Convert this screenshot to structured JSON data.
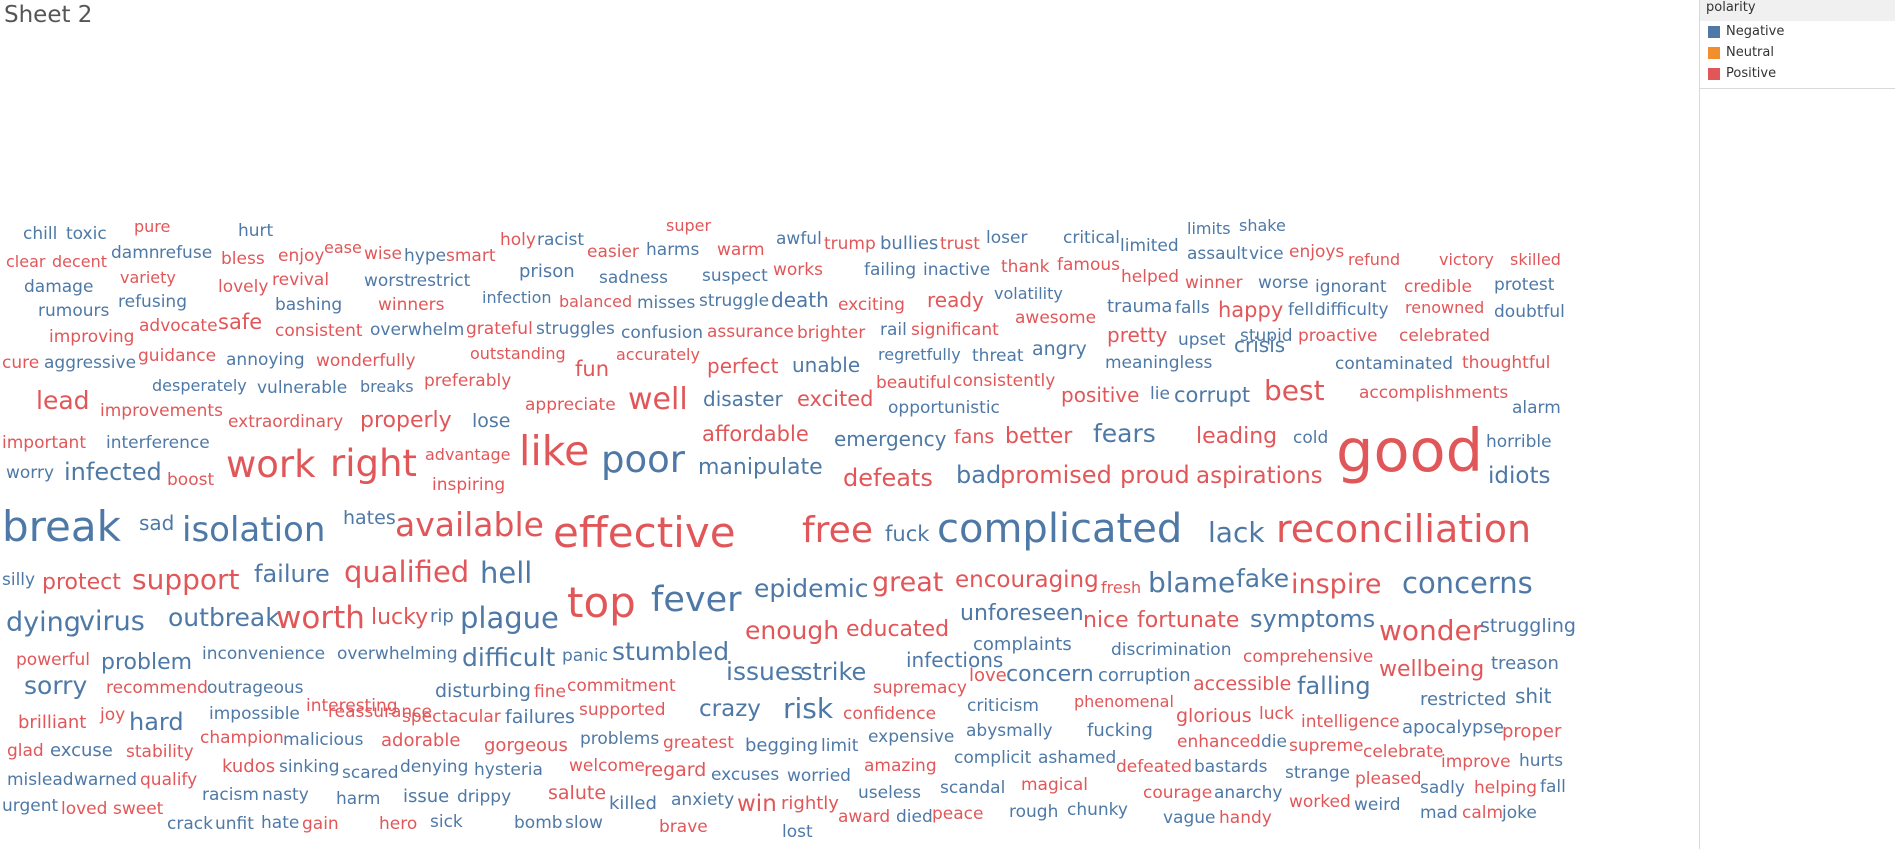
{
  "sheet": {
    "title": "Sheet 2"
  },
  "legend": {
    "title": "polarity",
    "items": [
      {
        "label": "Negative",
        "color": "#4e79a7"
      },
      {
        "label": "Neutral",
        "color": "#f28e2b"
      },
      {
        "label": "Positive",
        "color": "#e15759"
      }
    ]
  },
  "chart_data": {
    "type": "wordcloud",
    "color_field": "polarity",
    "words": [
      [
        "chill",
        "Negative"
      ],
      [
        "toxic",
        "Negative"
      ],
      [
        "pure",
        "Positive"
      ],
      [
        "hurt",
        "Negative"
      ],
      [
        "holy",
        "Positive"
      ],
      [
        "racist",
        "Negative"
      ],
      [
        "super",
        "Positive"
      ],
      [
        "awful",
        "Negative"
      ],
      [
        "trump",
        "Positive"
      ],
      [
        "bullies",
        "Negative"
      ],
      [
        "trust",
        "Positive"
      ],
      [
        "loser",
        "Negative"
      ],
      [
        "critical",
        "Negative"
      ],
      [
        "limits",
        "Negative"
      ],
      [
        "shake",
        "Negative"
      ],
      [
        "clear",
        "Positive"
      ],
      [
        "decent",
        "Positive"
      ],
      [
        "damn",
        "Negative"
      ],
      [
        "refuse",
        "Negative"
      ],
      [
        "bless",
        "Positive"
      ],
      [
        "enjoy",
        "Positive"
      ],
      [
        "ease",
        "Positive"
      ],
      [
        "wise",
        "Positive"
      ],
      [
        "hype",
        "Negative"
      ],
      [
        "smart",
        "Positive"
      ],
      [
        "easier",
        "Positive"
      ],
      [
        "harms",
        "Negative"
      ],
      [
        "warm",
        "Positive"
      ],
      [
        "limited",
        "Negative"
      ],
      [
        "assault",
        "Negative"
      ],
      [
        "vice",
        "Negative"
      ],
      [
        "enjoys",
        "Positive"
      ],
      [
        "refund",
        "Positive"
      ],
      [
        "victory",
        "Positive"
      ],
      [
        "skilled",
        "Positive"
      ],
      [
        "damage",
        "Negative"
      ],
      [
        "variety",
        "Positive"
      ],
      [
        "lovely",
        "Positive"
      ],
      [
        "revival",
        "Positive"
      ],
      [
        "worst",
        "Negative"
      ],
      [
        "restrict",
        "Negative"
      ],
      [
        "prison",
        "Negative"
      ],
      [
        "sadness",
        "Negative"
      ],
      [
        "suspect",
        "Negative"
      ],
      [
        "works",
        "Positive"
      ],
      [
        "failing",
        "Negative"
      ],
      [
        "inactive",
        "Negative"
      ],
      [
        "thank",
        "Positive"
      ],
      [
        "famous",
        "Positive"
      ],
      [
        "helped",
        "Positive"
      ],
      [
        "winner",
        "Positive"
      ],
      [
        "worse",
        "Negative"
      ],
      [
        "ignorant",
        "Negative"
      ],
      [
        "credible",
        "Positive"
      ],
      [
        "protest",
        "Negative"
      ],
      [
        "rumours",
        "Negative"
      ],
      [
        "refusing",
        "Negative"
      ],
      [
        "bashing",
        "Negative"
      ],
      [
        "winners",
        "Positive"
      ],
      [
        "infection",
        "Negative"
      ],
      [
        "balanced",
        "Positive"
      ],
      [
        "misses",
        "Negative"
      ],
      [
        "struggle",
        "Negative"
      ],
      [
        "death",
        "Negative"
      ],
      [
        "exciting",
        "Positive"
      ],
      [
        "ready",
        "Positive"
      ],
      [
        "volatility",
        "Negative"
      ],
      [
        "trauma",
        "Negative"
      ],
      [
        "falls",
        "Negative"
      ],
      [
        "happy",
        "Positive"
      ],
      [
        "fell",
        "Negative"
      ],
      [
        "difficulty",
        "Negative"
      ],
      [
        "renowned",
        "Positive"
      ],
      [
        "doubtful",
        "Negative"
      ],
      [
        "improving",
        "Positive"
      ],
      [
        "advocate",
        "Positive"
      ],
      [
        "safe",
        "Positive"
      ],
      [
        "consistent",
        "Positive"
      ],
      [
        "overwhelm",
        "Negative"
      ],
      [
        "grateful",
        "Positive"
      ],
      [
        "struggles",
        "Negative"
      ],
      [
        "confusion",
        "Negative"
      ],
      [
        "assurance",
        "Positive"
      ],
      [
        "brighter",
        "Positive"
      ],
      [
        "rail",
        "Negative"
      ],
      [
        "significant",
        "Positive"
      ],
      [
        "awesome",
        "Positive"
      ],
      [
        "pretty",
        "Positive"
      ],
      [
        "upset",
        "Negative"
      ],
      [
        "stupid",
        "Negative"
      ],
      [
        "proactive",
        "Positive"
      ],
      [
        "celebrated",
        "Positive"
      ],
      [
        "cure",
        "Positive"
      ],
      [
        "aggressive",
        "Negative"
      ],
      [
        "guidance",
        "Positive"
      ],
      [
        "annoying",
        "Negative"
      ],
      [
        "wonderfully",
        "Positive"
      ],
      [
        "outstanding",
        "Positive"
      ],
      [
        "accurately",
        "Positive"
      ],
      [
        "regretfully",
        "Negative"
      ],
      [
        "threat",
        "Negative"
      ],
      [
        "angry",
        "Negative"
      ],
      [
        "crisis",
        "Negative"
      ],
      [
        "meaningless",
        "Negative"
      ],
      [
        "contaminated",
        "Negative"
      ],
      [
        "thoughtful",
        "Positive"
      ],
      [
        "fun",
        "Positive"
      ],
      [
        "perfect",
        "Positive"
      ],
      [
        "unable",
        "Negative"
      ],
      [
        "desperately",
        "Negative"
      ],
      [
        "vulnerable",
        "Negative"
      ],
      [
        "breaks",
        "Negative"
      ],
      [
        "preferably",
        "Positive"
      ],
      [
        "beautiful",
        "Positive"
      ],
      [
        "consistently",
        "Positive"
      ],
      [
        "positive",
        "Positive"
      ],
      [
        "lie",
        "Negative"
      ],
      [
        "corrupt",
        "Negative"
      ],
      [
        "best",
        "Positive"
      ],
      [
        "accomplishments",
        "Positive"
      ],
      [
        "lead",
        "Positive"
      ],
      [
        "improvements",
        "Positive"
      ],
      [
        "appreciate",
        "Positive"
      ],
      [
        "well",
        "Positive"
      ],
      [
        "disaster",
        "Negative"
      ],
      [
        "excited",
        "Positive"
      ],
      [
        "opportunistic",
        "Negative"
      ],
      [
        "alarm",
        "Negative"
      ],
      [
        "extraordinary",
        "Positive"
      ],
      [
        "properly",
        "Positive"
      ],
      [
        "lose",
        "Negative"
      ],
      [
        "important",
        "Positive"
      ],
      [
        "interference",
        "Negative"
      ],
      [
        "affordable",
        "Positive"
      ],
      [
        "emergency",
        "Negative"
      ],
      [
        "fans",
        "Positive"
      ],
      [
        "better",
        "Positive"
      ],
      [
        "fears",
        "Negative"
      ],
      [
        "leading",
        "Positive"
      ],
      [
        "cold",
        "Negative"
      ],
      [
        "horrible",
        "Negative"
      ],
      [
        "worry",
        "Negative"
      ],
      [
        "infected",
        "Negative"
      ],
      [
        "boost",
        "Positive"
      ],
      [
        "work",
        "Positive"
      ],
      [
        "right",
        "Positive"
      ],
      [
        "advantage",
        "Positive"
      ],
      [
        "inspiring",
        "Positive"
      ],
      [
        "like",
        "Positive"
      ],
      [
        "poor",
        "Negative"
      ],
      [
        "manipulate",
        "Negative"
      ],
      [
        "defeats",
        "Positive"
      ],
      [
        "bad",
        "Negative"
      ],
      [
        "promised",
        "Positive"
      ],
      [
        "proud",
        "Positive"
      ],
      [
        "aspirations",
        "Positive"
      ],
      [
        "good",
        "Positive"
      ],
      [
        "idiots",
        "Negative"
      ],
      [
        "break",
        "Negative"
      ],
      [
        "sad",
        "Negative"
      ],
      [
        "isolation",
        "Negative"
      ],
      [
        "hates",
        "Negative"
      ],
      [
        "available",
        "Positive"
      ],
      [
        "effective",
        "Positive"
      ],
      [
        "free",
        "Positive"
      ],
      [
        "fuck",
        "Negative"
      ],
      [
        "complicated",
        "Negative"
      ],
      [
        "lack",
        "Negative"
      ],
      [
        "reconciliation",
        "Positive"
      ],
      [
        "silly",
        "Negative"
      ],
      [
        "protect",
        "Positive"
      ],
      [
        "support",
        "Positive"
      ],
      [
        "failure",
        "Negative"
      ],
      [
        "qualified",
        "Positive"
      ],
      [
        "hell",
        "Negative"
      ],
      [
        "top",
        "Positive"
      ],
      [
        "fever",
        "Negative"
      ],
      [
        "epidemic",
        "Negative"
      ],
      [
        "great",
        "Positive"
      ],
      [
        "encouraging",
        "Positive"
      ],
      [
        "fresh",
        "Positive"
      ],
      [
        "blame",
        "Negative"
      ],
      [
        "fake",
        "Negative"
      ],
      [
        "inspire",
        "Positive"
      ],
      [
        "concerns",
        "Negative"
      ],
      [
        "dying",
        "Negative"
      ],
      [
        "virus",
        "Negative"
      ],
      [
        "outbreak",
        "Negative"
      ],
      [
        "worth",
        "Positive"
      ],
      [
        "lucky",
        "Positive"
      ],
      [
        "rip",
        "Negative"
      ],
      [
        "plague",
        "Negative"
      ],
      [
        "unforeseen",
        "Negative"
      ],
      [
        "nice",
        "Positive"
      ],
      [
        "fortunate",
        "Positive"
      ],
      [
        "symptoms",
        "Negative"
      ],
      [
        "wonder",
        "Positive"
      ],
      [
        "struggling",
        "Negative"
      ],
      [
        "enough",
        "Positive"
      ],
      [
        "educated",
        "Positive"
      ],
      [
        "complaints",
        "Negative"
      ],
      [
        "discrimination",
        "Negative"
      ],
      [
        "comprehensive",
        "Positive"
      ],
      [
        "powerful",
        "Positive"
      ],
      [
        "problem",
        "Negative"
      ],
      [
        "inconvenience",
        "Negative"
      ],
      [
        "overwhelming",
        "Negative"
      ],
      [
        "difficult",
        "Negative"
      ],
      [
        "panic",
        "Negative"
      ],
      [
        "stumbled",
        "Negative"
      ],
      [
        "infections",
        "Negative"
      ],
      [
        "love",
        "Positive"
      ],
      [
        "concern",
        "Negative"
      ],
      [
        "corruption",
        "Negative"
      ],
      [
        "wellbeing",
        "Positive"
      ],
      [
        "treason",
        "Negative"
      ],
      [
        "issues",
        "Negative"
      ],
      [
        "strike",
        "Negative"
      ],
      [
        "supremacy",
        "Positive"
      ],
      [
        "accessible",
        "Positive"
      ],
      [
        "falling",
        "Negative"
      ],
      [
        "sorry",
        "Negative"
      ],
      [
        "recommend",
        "Positive"
      ],
      [
        "outrageous",
        "Negative"
      ],
      [
        "disturbing",
        "Negative"
      ],
      [
        "fine",
        "Positive"
      ],
      [
        "commitment",
        "Positive"
      ],
      [
        "restricted",
        "Negative"
      ],
      [
        "shit",
        "Negative"
      ],
      [
        "reassurance",
        "Positive"
      ],
      [
        "interesting",
        "Positive"
      ],
      [
        "crazy",
        "Negative"
      ],
      [
        "risk",
        "Negative"
      ],
      [
        "confidence",
        "Positive"
      ],
      [
        "criticism",
        "Negative"
      ],
      [
        "phenomenal",
        "Positive"
      ],
      [
        "glorious",
        "Positive"
      ],
      [
        "luck",
        "Positive"
      ],
      [
        "brilliant",
        "Positive"
      ],
      [
        "joy",
        "Positive"
      ],
      [
        "hard",
        "Negative"
      ],
      [
        "impossible",
        "Negative"
      ],
      [
        "spectacular",
        "Positive"
      ],
      [
        "failures",
        "Negative"
      ],
      [
        "supported",
        "Positive"
      ],
      [
        "intelligence",
        "Positive"
      ],
      [
        "apocalypse",
        "Negative"
      ],
      [
        "proper",
        "Positive"
      ],
      [
        "champion",
        "Positive"
      ],
      [
        "malicious",
        "Negative"
      ],
      [
        "adorable",
        "Positive"
      ],
      [
        "gorgeous",
        "Positive"
      ],
      [
        "problems",
        "Negative"
      ],
      [
        "greatest",
        "Positive"
      ],
      [
        "begging",
        "Negative"
      ],
      [
        "limit",
        "Negative"
      ],
      [
        "expensive",
        "Negative"
      ],
      [
        "abysmally",
        "Negative"
      ],
      [
        "fucking",
        "Negative"
      ],
      [
        "enhanced",
        "Positive"
      ],
      [
        "die",
        "Negative"
      ],
      [
        "supreme",
        "Positive"
      ],
      [
        "celebrate",
        "Positive"
      ],
      [
        "improve",
        "Positive"
      ],
      [
        "hurts",
        "Negative"
      ],
      [
        "glad",
        "Positive"
      ],
      [
        "excuse",
        "Negative"
      ],
      [
        "stability",
        "Positive"
      ],
      [
        "kudos",
        "Positive"
      ],
      [
        "sinking",
        "Negative"
      ],
      [
        "scared",
        "Negative"
      ],
      [
        "denying",
        "Negative"
      ],
      [
        "hysteria",
        "Negative"
      ],
      [
        "welcome",
        "Positive"
      ],
      [
        "regard",
        "Positive"
      ],
      [
        "excuses",
        "Negative"
      ],
      [
        "worried",
        "Negative"
      ],
      [
        "amazing",
        "Positive"
      ],
      [
        "complicit",
        "Negative"
      ],
      [
        "ashamed",
        "Negative"
      ],
      [
        "defeated",
        "Positive"
      ],
      [
        "bastards",
        "Negative"
      ],
      [
        "strange",
        "Negative"
      ],
      [
        "pleased",
        "Positive"
      ],
      [
        "sadly",
        "Negative"
      ],
      [
        "helping",
        "Positive"
      ],
      [
        "fall",
        "Negative"
      ],
      [
        "mislead",
        "Negative"
      ],
      [
        "warned",
        "Negative"
      ],
      [
        "qualify",
        "Positive"
      ],
      [
        "racism",
        "Negative"
      ],
      [
        "nasty",
        "Negative"
      ],
      [
        "harm",
        "Negative"
      ],
      [
        "issue",
        "Negative"
      ],
      [
        "drippy",
        "Negative"
      ],
      [
        "salute",
        "Positive"
      ],
      [
        "killed",
        "Negative"
      ],
      [
        "anxiety",
        "Negative"
      ],
      [
        "win",
        "Positive"
      ],
      [
        "rightly",
        "Positive"
      ],
      [
        "useless",
        "Negative"
      ],
      [
        "scandal",
        "Negative"
      ],
      [
        "magical",
        "Positive"
      ],
      [
        "courage",
        "Positive"
      ],
      [
        "anarchy",
        "Negative"
      ],
      [
        "worked",
        "Positive"
      ],
      [
        "weird",
        "Negative"
      ],
      [
        "mad",
        "Negative"
      ],
      [
        "calm",
        "Positive"
      ],
      [
        "joke",
        "Negative"
      ],
      [
        "urgent",
        "Negative"
      ],
      [
        "loved",
        "Positive"
      ],
      [
        "sweet",
        "Positive"
      ],
      [
        "crack",
        "Negative"
      ],
      [
        "unfit",
        "Negative"
      ],
      [
        "hate",
        "Negative"
      ],
      [
        "gain",
        "Positive"
      ],
      [
        "hero",
        "Positive"
      ],
      [
        "sick",
        "Negative"
      ],
      [
        "bomb",
        "Negative"
      ],
      [
        "slow",
        "Negative"
      ],
      [
        "brave",
        "Positive"
      ],
      [
        "lost",
        "Negative"
      ],
      [
        "award",
        "Positive"
      ],
      [
        "died",
        "Negative"
      ],
      [
        "peace",
        "Positive"
      ],
      [
        "rough",
        "Negative"
      ],
      [
        "chunky",
        "Negative"
      ],
      [
        "vague",
        "Negative"
      ],
      [
        "handy",
        "Positive"
      ]
    ]
  }
}
